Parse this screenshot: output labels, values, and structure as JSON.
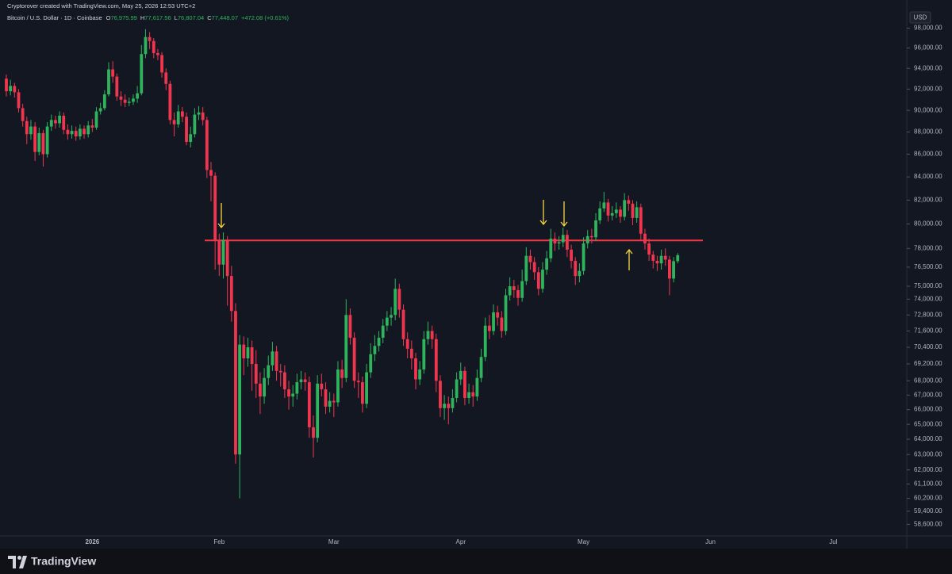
{
  "chart_data": {
    "type": "candlestick",
    "attribution": "Cryptorover created with TradingView.com, May 25, 2026 12:53 UTC+2",
    "title": "Bitcoin / U.S. Dollar · 1D · Coinbase",
    "legend_values": [
      {
        "label": "O",
        "value": "76,975.99"
      },
      {
        "label": "H",
        "value": "77,617.56"
      },
      {
        "label": "L",
        "value": "76,807.04"
      },
      {
        "label": "C",
        "value": "77,448.07"
      }
    ],
    "change": "+472.08 (+0.61%)",
    "currency": "USD",
    "brand": "TradingView",
    "up_color": "#2fb45d",
    "down_color": "#f0364f",
    "log_scale": true,
    "grid": false,
    "x_labels": [
      "2026",
      "Feb",
      "Mar",
      "Apr",
      "May",
      "Jun",
      "Jul"
    ],
    "ylim": [
      57900,
      100900
    ],
    "yticks": [
      {
        "value": 98000,
        "label": "98,000.00"
      },
      {
        "value": 96000,
        "label": "96,000.00"
      },
      {
        "value": 94000,
        "label": "94,000.00"
      },
      {
        "value": 92000,
        "label": "92,000.00"
      },
      {
        "value": 90000,
        "label": "90,000.00"
      },
      {
        "value": 88000,
        "label": "88,000.00"
      },
      {
        "value": 86000,
        "label": "86,000.00"
      },
      {
        "value": 84000,
        "label": "84,000.00"
      },
      {
        "value": 82000,
        "label": "82,000.00"
      },
      {
        "value": 80000,
        "label": "80,000.00"
      },
      {
        "value": 78000,
        "label": "78,000.00"
      },
      {
        "value": 76500,
        "label": "76,500.00"
      },
      {
        "value": 75000,
        "label": "75,000.00"
      },
      {
        "value": 74000,
        "label": "74,000.00"
      },
      {
        "value": 72800,
        "label": "72,800.00"
      },
      {
        "value": 71600,
        "label": "71,600.00"
      },
      {
        "value": 70400,
        "label": "70,400.00"
      },
      {
        "value": 69200,
        "label": "69,200.00"
      },
      {
        "value": 68000,
        "label": "68,000.00"
      },
      {
        "value": 67000,
        "label": "67,000.00"
      },
      {
        "value": 66000,
        "label": "66,000.00"
      },
      {
        "value": 65000,
        "label": "65,000.00"
      },
      {
        "value": 64000,
        "label": "64,000.00"
      },
      {
        "value": 63000,
        "label": "63,000.00"
      },
      {
        "value": 62000,
        "label": "62,000.00"
      },
      {
        "value": 61100,
        "label": "61,100.00"
      },
      {
        "value": 60200,
        "label": "60,200.00"
      },
      {
        "value": 59400,
        "label": "59,400.00"
      },
      {
        "value": 58600,
        "label": "58,600.00"
      }
    ],
    "hline": {
      "value": 78650,
      "color": "#f23645"
    },
    "open": [
      93000,
      91800,
      92300,
      91700,
      90200,
      89000,
      87800,
      88500,
      86200,
      87900,
      86000,
      88500,
      89100,
      88800,
      89500,
      88200,
      87800,
      88100,
      87600,
      88300,
      87800,
      88600,
      88400,
      89900,
      90200,
      91500,
      93900,
      93200,
      91300,
      91000,
      90700,
      90800,
      91100,
      91600,
      95400,
      97100,
      96700,
      95500,
      95300,
      93600,
      92500,
      89100,
      88700,
      89900,
      89400,
      87100,
      87800,
      89600,
      89800,
      89100,
      84600,
      84100,
      78700,
      76700,
      78700,
      75800,
      73100,
      63000,
      70600,
      69600,
      70400,
      69200,
      67800,
      66900,
      68200,
      69100,
      70100,
      68700,
      68600,
      67400,
      66900,
      67100,
      67900,
      68100,
      67900,
      64800,
      64100,
      67800,
      67400,
      66200,
      66600,
      66500,
      68800,
      68200,
      72800,
      71100,
      68000,
      67900,
      66400,
      68600,
      69900,
      70500,
      71100,
      72000,
      72600,
      72800,
      74800,
      73200,
      71000,
      70300,
      69600,
      68100,
      68800,
      71000,
      71600,
      71000,
      68000,
      66100,
      66400,
      66100,
      66800,
      68100,
      68700,
      66800,
      67200,
      66900,
      68200,
      69700,
      72000,
      71600,
      73000,
      72600,
      71600,
      74300,
      75000,
      74700,
      74100,
      75400,
      77400,
      76900,
      76100,
      74800,
      76300,
      77200,
      78800,
      78400,
      78500,
      79100,
      77900,
      77000,
      75800,
      76200,
      78400,
      79000,
      78900,
      80300,
      81300,
      81800,
      80700,
      80900,
      81200,
      80600,
      82000,
      81700,
      80500,
      81400,
      79200,
      78400,
      77500,
      77000,
      76800,
      77400,
      77100,
      75600,
      76975.99
    ],
    "high": [
      93400,
      92900,
      92600,
      92000,
      90600,
      89400,
      89100,
      88900,
      88400,
      88200,
      88900,
      89600,
      89500,
      89900,
      89800,
      88700,
      88600,
      88500,
      88700,
      88600,
      89000,
      89200,
      90300,
      90700,
      91900,
      94600,
      94700,
      93500,
      91800,
      91500,
      91200,
      91500,
      92300,
      96300,
      97900,
      97600,
      97000,
      95900,
      95600,
      94000,
      92800,
      89800,
      90500,
      90300,
      89800,
      88500,
      90200,
      90400,
      90300,
      89400,
      85300,
      84400,
      79200,
      79300,
      79000,
      76600,
      73700,
      71300,
      71200,
      71100,
      70900,
      70200,
      68600,
      68900,
      69800,
      70800,
      70500,
      69200,
      69100,
      68000,
      67700,
      68500,
      68700,
      68600,
      68300,
      65600,
      68400,
      68500,
      67900,
      67200,
      67100,
      69400,
      69500,
      74000,
      73300,
      71500,
      68600,
      68300,
      69200,
      70700,
      71300,
      71600,
      72500,
      73100,
      73400,
      75600,
      75200,
      73600,
      71500,
      70900,
      70000,
      69400,
      71600,
      72300,
      72000,
      71400,
      68400,
      67000,
      66900,
      67400,
      68600,
      69300,
      69000,
      67800,
      67700,
      68800,
      70300,
      72600,
      72800,
      73600,
      73500,
      73100,
      74800,
      75700,
      75500,
      75100,
      76300,
      78100,
      77900,
      77300,
      76500,
      76900,
      77800,
      79600,
      79300,
      79000,
      79700,
      79500,
      78300,
      77300,
      76800,
      78900,
      79500,
      79600,
      80900,
      81900,
      82700,
      82100,
      81500,
      81800,
      81500,
      82600,
      82400,
      82000,
      81900,
      81700,
      79600,
      78800,
      77800,
      77400,
      77900,
      78000,
      77400,
      77300,
      77617.56
    ],
    "low": [
      91300,
      91400,
      91200,
      89800,
      88500,
      86900,
      87300,
      85400,
      85900,
      84900,
      85700,
      88100,
      88300,
      88400,
      87800,
      87300,
      87400,
      87200,
      87300,
      87400,
      87500,
      88000,
      88200,
      89600,
      90000,
      91300,
      92600,
      90900,
      90400,
      90300,
      90400,
      90500,
      90700,
      91400,
      95000,
      95900,
      95000,
      94800,
      93100,
      91900,
      88700,
      87600,
      88400,
      88900,
      86800,
      86600,
      87500,
      89100,
      88600,
      83900,
      81900,
      76300,
      75800,
      75600,
      73500,
      72300,
      62400,
      60200,
      68400,
      69000,
      67300,
      66800,
      65700,
      66400,
      67700,
      68700,
      68000,
      67600,
      66800,
      66000,
      66200,
      66700,
      67400,
      67300,
      64100,
      62800,
      63800,
      66900,
      65700,
      65800,
      65500,
      66200,
      67500,
      67900,
      70600,
      67500,
      66800,
      65800,
      66100,
      68200,
      69400,
      70100,
      70700,
      71600,
      72000,
      72400,
      72600,
      70500,
      69600,
      68800,
      67400,
      67700,
      68500,
      70600,
      70300,
      67200,
      65500,
      65300,
      65000,
      65800,
      66500,
      67700,
      66300,
      66400,
      66200,
      66600,
      67900,
      69400,
      71000,
      71300,
      72000,
      71100,
      71300,
      73900,
      74100,
      73500,
      73800,
      75100,
      76300,
      75500,
      74300,
      74500,
      75900,
      76900,
      77800,
      77900,
      78100,
      77300,
      76400,
      75100,
      75300,
      75900,
      78000,
      78400,
      78600,
      80000,
      81000,
      80200,
      80300,
      80500,
      80100,
      80300,
      81100,
      79900,
      80100,
      78700,
      77900,
      77000,
      76400,
      76200,
      76300,
      76600,
      74300,
      75300,
      76807.04
    ],
    "close": [
      91800,
      92300,
      91700,
      90200,
      89000,
      87800,
      88500,
      86200,
      87900,
      86000,
      88500,
      89100,
      88800,
      89500,
      88200,
      87800,
      88100,
      87600,
      88300,
      87800,
      88600,
      88400,
      89900,
      90200,
      91500,
      93900,
      93200,
      91300,
      91000,
      90700,
      90800,
      91100,
      91600,
      95400,
      97100,
      96700,
      95500,
      95300,
      93600,
      92500,
      89100,
      88700,
      89900,
      89400,
      87100,
      87800,
      89600,
      89800,
      89100,
      84600,
      84100,
      78700,
      76700,
      78700,
      75800,
      73100,
      63000,
      70600,
      69600,
      70400,
      69200,
      67800,
      66900,
      68200,
      69100,
      70100,
      68700,
      68600,
      67400,
      66900,
      67100,
      67900,
      68100,
      67900,
      64800,
      64100,
      67800,
      67400,
      66200,
      66600,
      66500,
      68800,
      68200,
      72800,
      71100,
      68000,
      67900,
      66400,
      68600,
      69900,
      70500,
      71100,
      72000,
      72600,
      72800,
      74800,
      73200,
      71000,
      70300,
      69600,
      68100,
      68800,
      71000,
      71600,
      71000,
      68000,
      66100,
      66400,
      66100,
      66800,
      68100,
      68700,
      66800,
      67200,
      66900,
      68200,
      69700,
      72000,
      71600,
      73000,
      72600,
      71600,
      74300,
      75000,
      74700,
      74100,
      75400,
      77400,
      76900,
      76100,
      74800,
      76300,
      77200,
      78800,
      78400,
      78500,
      79100,
      77900,
      77000,
      75800,
      76200,
      78400,
      79000,
      78900,
      80300,
      81300,
      81800,
      80700,
      80900,
      81200,
      80600,
      82000,
      81700,
      80500,
      81400,
      79200,
      78400,
      77500,
      77000,
      76800,
      77400,
      77100,
      75600,
      76975.99,
      77448.07
    ]
  }
}
